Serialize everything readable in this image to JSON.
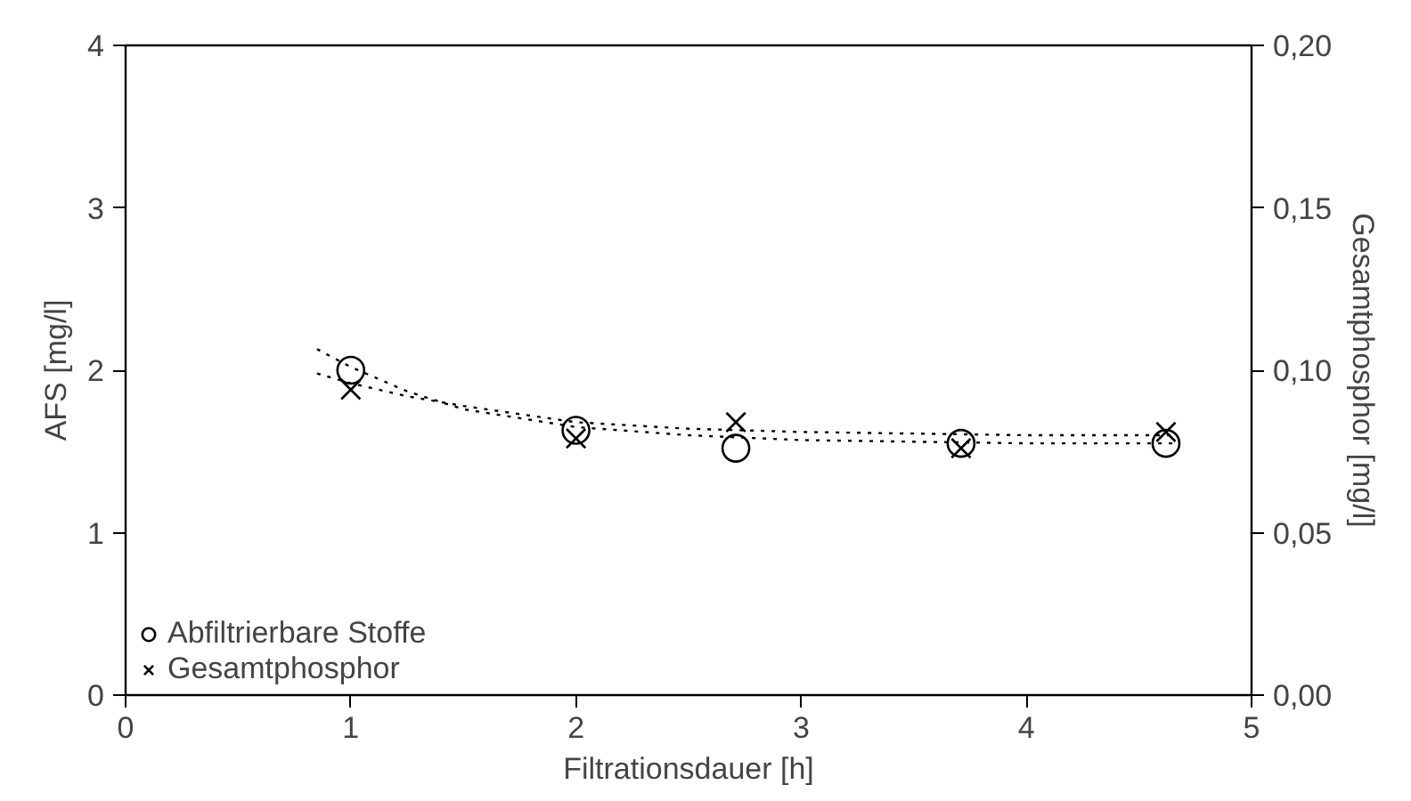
{
  "chart_data": {
    "type": "scatter",
    "xlabel": "Filtrationsdauer [h]",
    "ylabel": "AFS [mg/l]",
    "y2label": "Gesamtphosphor [mg/l]",
    "xlim": [
      0,
      5
    ],
    "xticks": [
      0,
      1,
      2,
      3,
      4,
      5
    ],
    "ylim": [
      0,
      4
    ],
    "yticks": [
      0,
      1,
      2,
      3,
      4
    ],
    "y2lim": [
      0,
      0.2
    ],
    "y2ticks": [
      {
        "value": 0,
        "label": "0,00"
      },
      {
        "value": 0.05,
        "label": "0,05"
      },
      {
        "value": 0.1,
        "label": "0,10"
      },
      {
        "value": 0.15,
        "label": "0,15"
      },
      {
        "value": 0.2,
        "label": "0,20"
      }
    ],
    "grid": false,
    "legend": "bottom left",
    "series": [
      {
        "name": "Abfiltrierbare Stoffe",
        "color": "#000000",
        "marker": "circle",
        "x": [
          1.0,
          2.0,
          2.71,
          3.71,
          4.62
        ],
        "values": [
          2.0,
          1.63,
          1.52,
          1.55,
          1.55
        ]
      },
      {
        "name": "Gesamtphosphor",
        "color": "#000000",
        "marker": "cross",
        "axis": "y2",
        "x": [
          1.0,
          2.0,
          2.71,
          3.71,
          4.62
        ],
        "values": [
          0.094,
          0.079,
          0.084,
          0.076,
          0.081
        ]
      },
      {
        "type": "line",
        "color": "#000000",
        "line_style": "dotted",
        "x": [
          0.85,
          1.0,
          1.25,
          1.5,
          2.0,
          2.5,
          3.0,
          3.5,
          4.0,
          4.65
        ],
        "values": [
          2.13,
          2.02,
          1.87,
          1.76,
          1.65,
          1.6,
          1.57,
          1.56,
          1.55,
          1.55
        ]
      },
      {
        "type": "line",
        "color": "#000000",
        "line_style": "dotted",
        "axis": "y2",
        "x": [
          0.85,
          1.0,
          1.25,
          1.5,
          2.0,
          2.5,
          3.0,
          3.5,
          4.0,
          4.65
        ],
        "values": [
          0.099,
          0.096,
          0.092,
          0.089,
          0.084,
          0.082,
          0.081,
          0.0805,
          0.08,
          0.08
        ]
      }
    ]
  }
}
